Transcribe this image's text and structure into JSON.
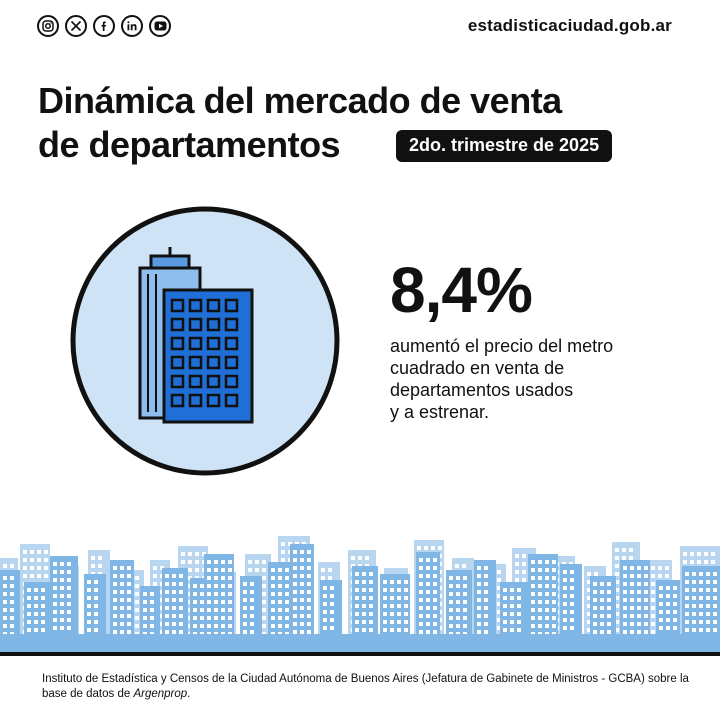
{
  "header": {
    "social_icons": [
      "instagram-icon",
      "x-icon",
      "facebook-icon",
      "linkedin-icon",
      "youtube-icon"
    ],
    "website": "estadisticaciudad.gob.ar"
  },
  "title": {
    "line1": "Dinámica del mercado de venta",
    "line2": "de departamentos",
    "period": "2do. trimestre de 2025"
  },
  "stat": {
    "value": "8,4%",
    "description_lines": [
      "aumentó el precio del metro",
      "cuadrado en venta de",
      "departamentos usados",
      "y a estrenar."
    ]
  },
  "footer": {
    "source_prefix": "Instituto de Estadística y Censos de la Ciudad Autónoma de Buenos Aires (Jefatura de Gabinete de Ministros - GCBA) sobre la base de datos de ",
    "source_brand": "Argenprop",
    "source_suffix": "."
  },
  "colors": {
    "accent_blue": "#1f6fd6",
    "light_blue": "#cfe3f6",
    "sky_blue": "#7fb6e6",
    "ink": "#111111"
  }
}
